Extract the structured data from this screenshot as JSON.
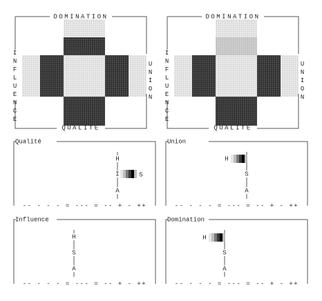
{
  "crosses": [
    {
      "top": "DOMINATION",
      "bottom": "QUALITE",
      "left": "INFLUENCE",
      "right": "UNION"
    },
    {
      "top": "DOMINATION",
      "bottom": "QUALITE",
      "left": "INFLUENCE",
      "right": "UNION"
    }
  ],
  "panels": [
    {
      "title": "Qualité",
      "letters": [
        "H",
        "I",
        "S",
        "A"
      ],
      "scale": "-- - - - = --- = -- + - ++"
    },
    {
      "title": "Union",
      "letters": [
        "H",
        "S",
        "A"
      ],
      "scale": "-- - - - = --- = -- + - ++"
    },
    {
      "title": "Influence",
      "letters": [
        "H",
        "S",
        "A"
      ],
      "scale": "-- - - - = --- = -- + - ++"
    },
    {
      "title": "Domination",
      "letters": [
        "H",
        "S",
        "A"
      ],
      "scale": "-- - - - = --- = -- + - ++"
    }
  ]
}
